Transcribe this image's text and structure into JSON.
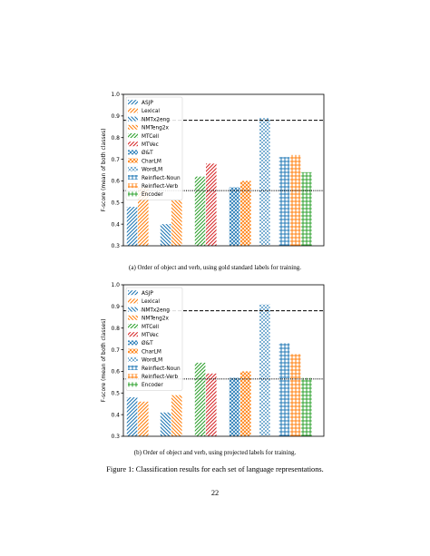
{
  "figure_caption": "Figure 1: Classification results for each set of language representations.",
  "page_number": "22",
  "legend_items": [
    {
      "label": "ASJP",
      "color": "#1f77b4",
      "pattern": "diag-fwd"
    },
    {
      "label": "Lexical",
      "color": "#ff7f0e",
      "pattern": "diag-fwd"
    },
    {
      "label": "NMTx2eng",
      "color": "#1f77b4",
      "pattern": "diag-back"
    },
    {
      "label": "NMTeng2x",
      "color": "#ff7f0e",
      "pattern": "diag-back"
    },
    {
      "label": "MTCell",
      "color": "#2ca02c",
      "pattern": "diag-fwd"
    },
    {
      "label": "MTVec",
      "color": "#d62728",
      "pattern": "diag-fwd"
    },
    {
      "label": "Ø&T",
      "color": "#1f77b4",
      "pattern": "cross"
    },
    {
      "label": "CharLM",
      "color": "#ff7f0e",
      "pattern": "cross"
    },
    {
      "label": "WordLM",
      "color": "#1f77b4",
      "pattern": "dots"
    },
    {
      "label": "Reinflect-Noun",
      "color": "#1f77b4",
      "pattern": "grid"
    },
    {
      "label": "Reinflect-Verb",
      "color": "#ff7f0e",
      "pattern": "grid"
    },
    {
      "label": "Encoder",
      "color": "#2ca02c",
      "pattern": "grid"
    }
  ],
  "chart_data": [
    {
      "type": "bar",
      "caption": "(a) Order of object and verb, using gold standard labels for training.",
      "ylabel": "F-score (mean of both classes)",
      "ylim": [
        0.3,
        1.0
      ],
      "yticks": [
        "0.3",
        "0.4",
        "0.5",
        "0.6",
        "0.7",
        "0.8",
        "0.9",
        "1.0"
      ],
      "series": [
        {
          "name": "ASJP",
          "value": 0.48
        },
        {
          "name": "Lexical",
          "value": 0.57
        },
        {
          "name": "NMTx2eng",
          "value": 0.4
        },
        {
          "name": "NMTeng2x",
          "value": 0.51
        },
        {
          "name": "MTCell",
          "value": 0.62
        },
        {
          "name": "MTVec",
          "value": 0.68
        },
        {
          "name": "Ø&T",
          "value": 0.57
        },
        {
          "name": "CharLM",
          "value": 0.6
        },
        {
          "name": "WordLM",
          "value": 0.89
        },
        {
          "name": "Reinflect-Noun",
          "value": 0.71
        },
        {
          "name": "Reinflect-Verb",
          "value": 0.72
        },
        {
          "name": "Encoder",
          "value": 0.64
        }
      ],
      "hlines": [
        {
          "style": "dashed",
          "value": 0.88
        },
        {
          "style": "dotted",
          "value": 0.555
        }
      ]
    },
    {
      "type": "bar",
      "caption": "(b) Order of object and verb, using projected labels for training.",
      "ylabel": "F-score (mean of both classes)",
      "ylim": [
        0.3,
        1.0
      ],
      "yticks": [
        "0.3",
        "0.4",
        "0.5",
        "0.6",
        "0.7",
        "0.8",
        "0.9",
        "1.0"
      ],
      "series": [
        {
          "name": "ASJP",
          "value": 0.48
        },
        {
          "name": "Lexical",
          "value": 0.46
        },
        {
          "name": "NMTx2eng",
          "value": 0.41
        },
        {
          "name": "NMTeng2x",
          "value": 0.49
        },
        {
          "name": "MTCell",
          "value": 0.64
        },
        {
          "name": "MTVec",
          "value": 0.59
        },
        {
          "name": "Ø&T",
          "value": 0.57
        },
        {
          "name": "CharLM",
          "value": 0.6
        },
        {
          "name": "WordLM",
          "value": 0.91
        },
        {
          "name": "Reinflect-Noun",
          "value": 0.73
        },
        {
          "name": "Reinflect-Verb",
          "value": 0.68
        },
        {
          "name": "Encoder",
          "value": 0.57
        }
      ],
      "hlines": [
        {
          "style": "dashed",
          "value": 0.88
        },
        {
          "style": "dotted",
          "value": 0.565
        }
      ]
    }
  ]
}
